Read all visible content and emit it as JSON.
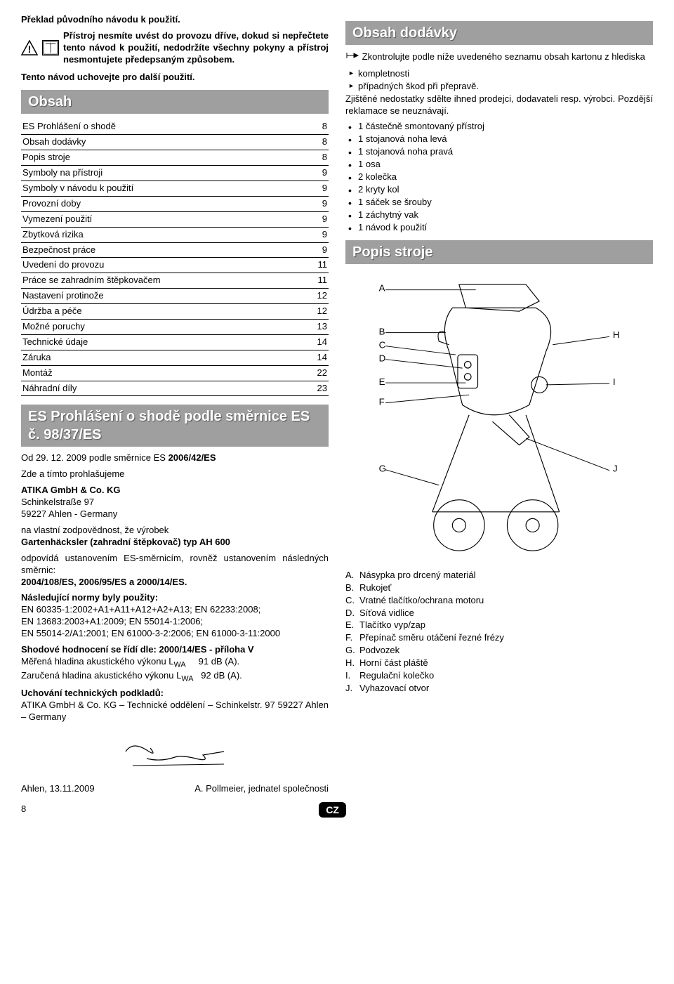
{
  "top_note": "Překlad původního návodu k použití.",
  "warning_text": "Přístroj nesmíte uvést do provozu dříve, dokud si nepřečtete tento návod k použití, nedodržíte všechny pokyny a přístroj nesmontujete předepsaným způsobem.",
  "save_note": "Tento návod uchovejte pro další použití.",
  "sections": {
    "obsah": "Obsah",
    "es_decl": "ES Prohlášení o shodě podle směrnice ES č. 98/37/ES",
    "dodavky": "Obsah dodávky",
    "popis": "Popis stroje"
  },
  "toc": [
    {
      "label": "ES Prohlášení o shodě",
      "page": "8"
    },
    {
      "label": "Obsah dodávky",
      "page": "8"
    },
    {
      "label": "Popis stroje",
      "page": "8"
    },
    {
      "label": "Symboly na přístroji",
      "page": "9"
    },
    {
      "label": "Symboly v návodu k použití",
      "page": "9"
    },
    {
      "label": "Provozní doby",
      "page": "9"
    },
    {
      "label": "Vymezení použití",
      "page": "9"
    },
    {
      "label": "Zbytková rizika",
      "page": "9"
    },
    {
      "label": "Bezpečnost práce",
      "page": "9"
    },
    {
      "label": "Uvedení do provozu",
      "page": "11"
    },
    {
      "label": "Práce se zahradním štěpkovačem",
      "page": "11"
    },
    {
      "label": "Nastavení protinože",
      "page": "12"
    },
    {
      "label": "Údržba a péče",
      "page": "12"
    },
    {
      "label": "Možné poruchy",
      "page": "13"
    },
    {
      "label": "Technické údaje",
      "page": "14"
    },
    {
      "label": "Záruka",
      "page": "14"
    },
    {
      "label": "Montáž",
      "page": "22"
    },
    {
      "label": "Náhradní díly",
      "page": "23"
    }
  ],
  "es_decl_body": {
    "line1": "Od 29. 12. 2009 podle směrnice ES ",
    "directive1_bold": "2006/42/ES",
    "line2": "Zde a tímto prohlašujeme",
    "company_name": "ATIKA GmbH & Co. KG",
    "addr1": "Schinkelstraße 97",
    "addr2": "59227 Ahlen - Germany",
    "line3": "na vlastní zodpovědnost, že výrobek",
    "product_bold": "Gartenhäcksler (zahradní štěpkovač) typ AH 600",
    "line4": "odpovídá ustanovením ES-směrnicím, rovněž ustanovením následných směrnic:",
    "dirs_bold": "2004/108/ES, 2006/95/ES a 2000/14/ES.",
    "norms_head": "Následující normy byly použity:",
    "norms1": "EN 60335-1:2002+A1+A11+A12+A2+A13; EN 62233:2008;",
    "norms2": "EN 13683:2003+A1:2009; EN 55014-1:2006;",
    "norms3": "EN 55014-2/A1:2001; EN 61000-3-2:2006; EN 61000-3-11:2000",
    "conf_head": "Shodové hodnocení se řídí dle: 2000/14/ES - příloha V",
    "measured": "Měřená hladina akustického výkonu L",
    "measured_val": "91 dB (A).",
    "guaranteed": "Zaručená hladina akustického výkonu L",
    "guaranteed_val": "92 dB (A).",
    "docs_head": "Uchování technických podkladů:",
    "docs_addr": "ATIKA GmbH & Co. KG – Technické oddělení – Schinkelstr. 97 59227 Ahlen – Germany",
    "place_date": "Ahlen, 13.11.2009",
    "signer": "A. Pollmeier, jednatel společnosti"
  },
  "delivery": {
    "intro1": "Zkontrolujte podle níže uvedeného seznamu obsah kartonu z hlediska",
    "checks": [
      "kompletnosti",
      "případných škod při přepravě."
    ],
    "intro2": "Zjištěné nedostatky sdělte ihned prodejci, dodavateli resp. výrobci. Pozdější reklamace se neuznávají.",
    "items": [
      "1 částečně smontovaný přístroj",
      "1 stojanová noha levá",
      "1 stojanová noha pravá",
      "1 osa",
      "2 kolečka",
      "2 kryty kol",
      "1 sáček se šrouby",
      "1 záchytný vak",
      "1 návod k použití"
    ]
  },
  "parts_labels": [
    "A",
    "B",
    "C",
    "D",
    "E",
    "F",
    "G",
    "H",
    "I",
    "J"
  ],
  "parts_list": [
    {
      "lbl": "A.",
      "txt": "Násypka pro drcený materiál"
    },
    {
      "lbl": "B.",
      "txt": "Rukojeť"
    },
    {
      "lbl": "C.",
      "txt": "Vratné tlačítko/ochrana motoru"
    },
    {
      "lbl": "D.",
      "txt": "Síťová vidlice"
    },
    {
      "lbl": "E.",
      "txt": "Tlačítko vyp/zap"
    },
    {
      "lbl": "F.",
      "txt": "Přepínač směru otáčení řezné frézy"
    },
    {
      "lbl": "G.",
      "txt": "Podvozek"
    },
    {
      "lbl": "H.",
      "txt": "Horní část pláště"
    },
    {
      "lbl": "I.",
      "txt": "Regulační kolečko"
    },
    {
      "lbl": "J.",
      "txt": "Vyhazovací otvor"
    }
  ],
  "page_num": "8",
  "cz": "CZ"
}
